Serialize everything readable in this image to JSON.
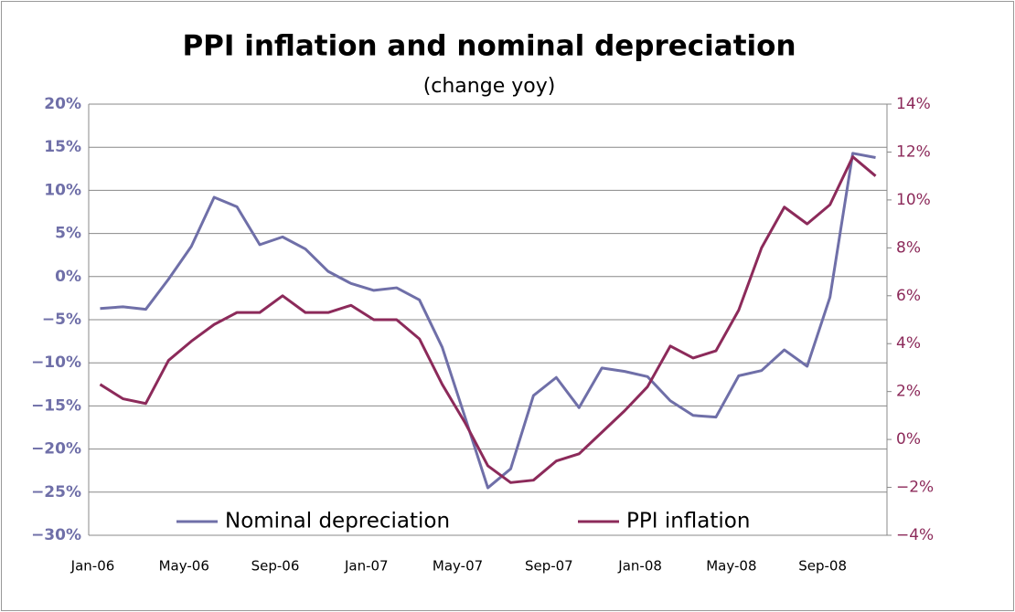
{
  "chart_data": {
    "type": "line",
    "title": "PPI inflation and nominal depreciation",
    "subtitle": "(change yoy)",
    "categories": [
      "Jan-06",
      null,
      null,
      null,
      "May-06",
      null,
      null,
      null,
      "Sep-06",
      null,
      null,
      null,
      "Jan-07",
      null,
      null,
      null,
      "May-07",
      null,
      null,
      null,
      "Sep-07",
      null,
      null,
      null,
      "Jan-08",
      null,
      null,
      null,
      "May-08",
      null,
      null,
      null,
      "Sep-08",
      null,
      null
    ],
    "series": [
      {
        "name": "Nominal depreciation",
        "color": "#6f6fa8",
        "axis": "y",
        "values": [
          -3.7,
          -3.5,
          -3.8,
          -0.3,
          3.5,
          9.2,
          8.1,
          3.7,
          4.6,
          3.2,
          0.6,
          -0.8,
          -1.6,
          -1.3,
          -2.7,
          -8.2,
          -16.3,
          -24.5,
          -22.3,
          -13.8,
          -11.7,
          -15.2,
          -10.6,
          -11.0,
          -11.6,
          -14.4,
          -16.1,
          -16.3,
          -11.5,
          -10.9,
          -8.5,
          -10.4,
          -2.4,
          14.3,
          13.8
        ]
      },
      {
        "name": "PPI inflation",
        "color": "#8c2a5a",
        "axis": "y2",
        "values": [
          2.3,
          1.7,
          1.5,
          3.3,
          4.1,
          4.8,
          5.3,
          5.3,
          6.0,
          5.3,
          5.3,
          5.6,
          5.0,
          5.0,
          4.2,
          2.3,
          0.7,
          -1.1,
          -1.8,
          -1.7,
          -0.9,
          -0.6,
          0.3,
          1.2,
          2.2,
          3.9,
          3.4,
          3.7,
          5.4,
          8.0,
          9.7,
          9.0,
          9.8,
          11.8,
          11.0
        ]
      }
    ],
    "ylim": [
      -30,
      20
    ],
    "yticks": [
      {
        "value": -30,
        "label": "−30%"
      },
      {
        "value": -25,
        "label": "−25%"
      },
      {
        "value": -20,
        "label": "−20%"
      },
      {
        "value": -15,
        "label": "−15%"
      },
      {
        "value": -10,
        "label": "−10%"
      },
      {
        "value": -5,
        "label": "−5%"
      },
      {
        "value": 0,
        "label": "0%"
      },
      {
        "value": 5,
        "label": "5%"
      },
      {
        "value": 10,
        "label": "10%"
      },
      {
        "value": 15,
        "label": "15%"
      },
      {
        "value": 20,
        "label": "20%"
      }
    ],
    "y2lim": [
      -4,
      14
    ],
    "y2ticks": [
      {
        "value": -4,
        "label": "−4%"
      },
      {
        "value": -2,
        "label": "−2%"
      },
      {
        "value": 0,
        "label": "0%"
      },
      {
        "value": 2,
        "label": "2%"
      },
      {
        "value": 4,
        "label": "4%"
      },
      {
        "value": 6,
        "label": "6%"
      },
      {
        "value": 8,
        "label": "8%"
      },
      {
        "value": 10,
        "label": "10%"
      },
      {
        "value": 12,
        "label": "12%"
      },
      {
        "value": 14,
        "label": "14%"
      }
    ],
    "grid": true,
    "legend": "bottom"
  }
}
